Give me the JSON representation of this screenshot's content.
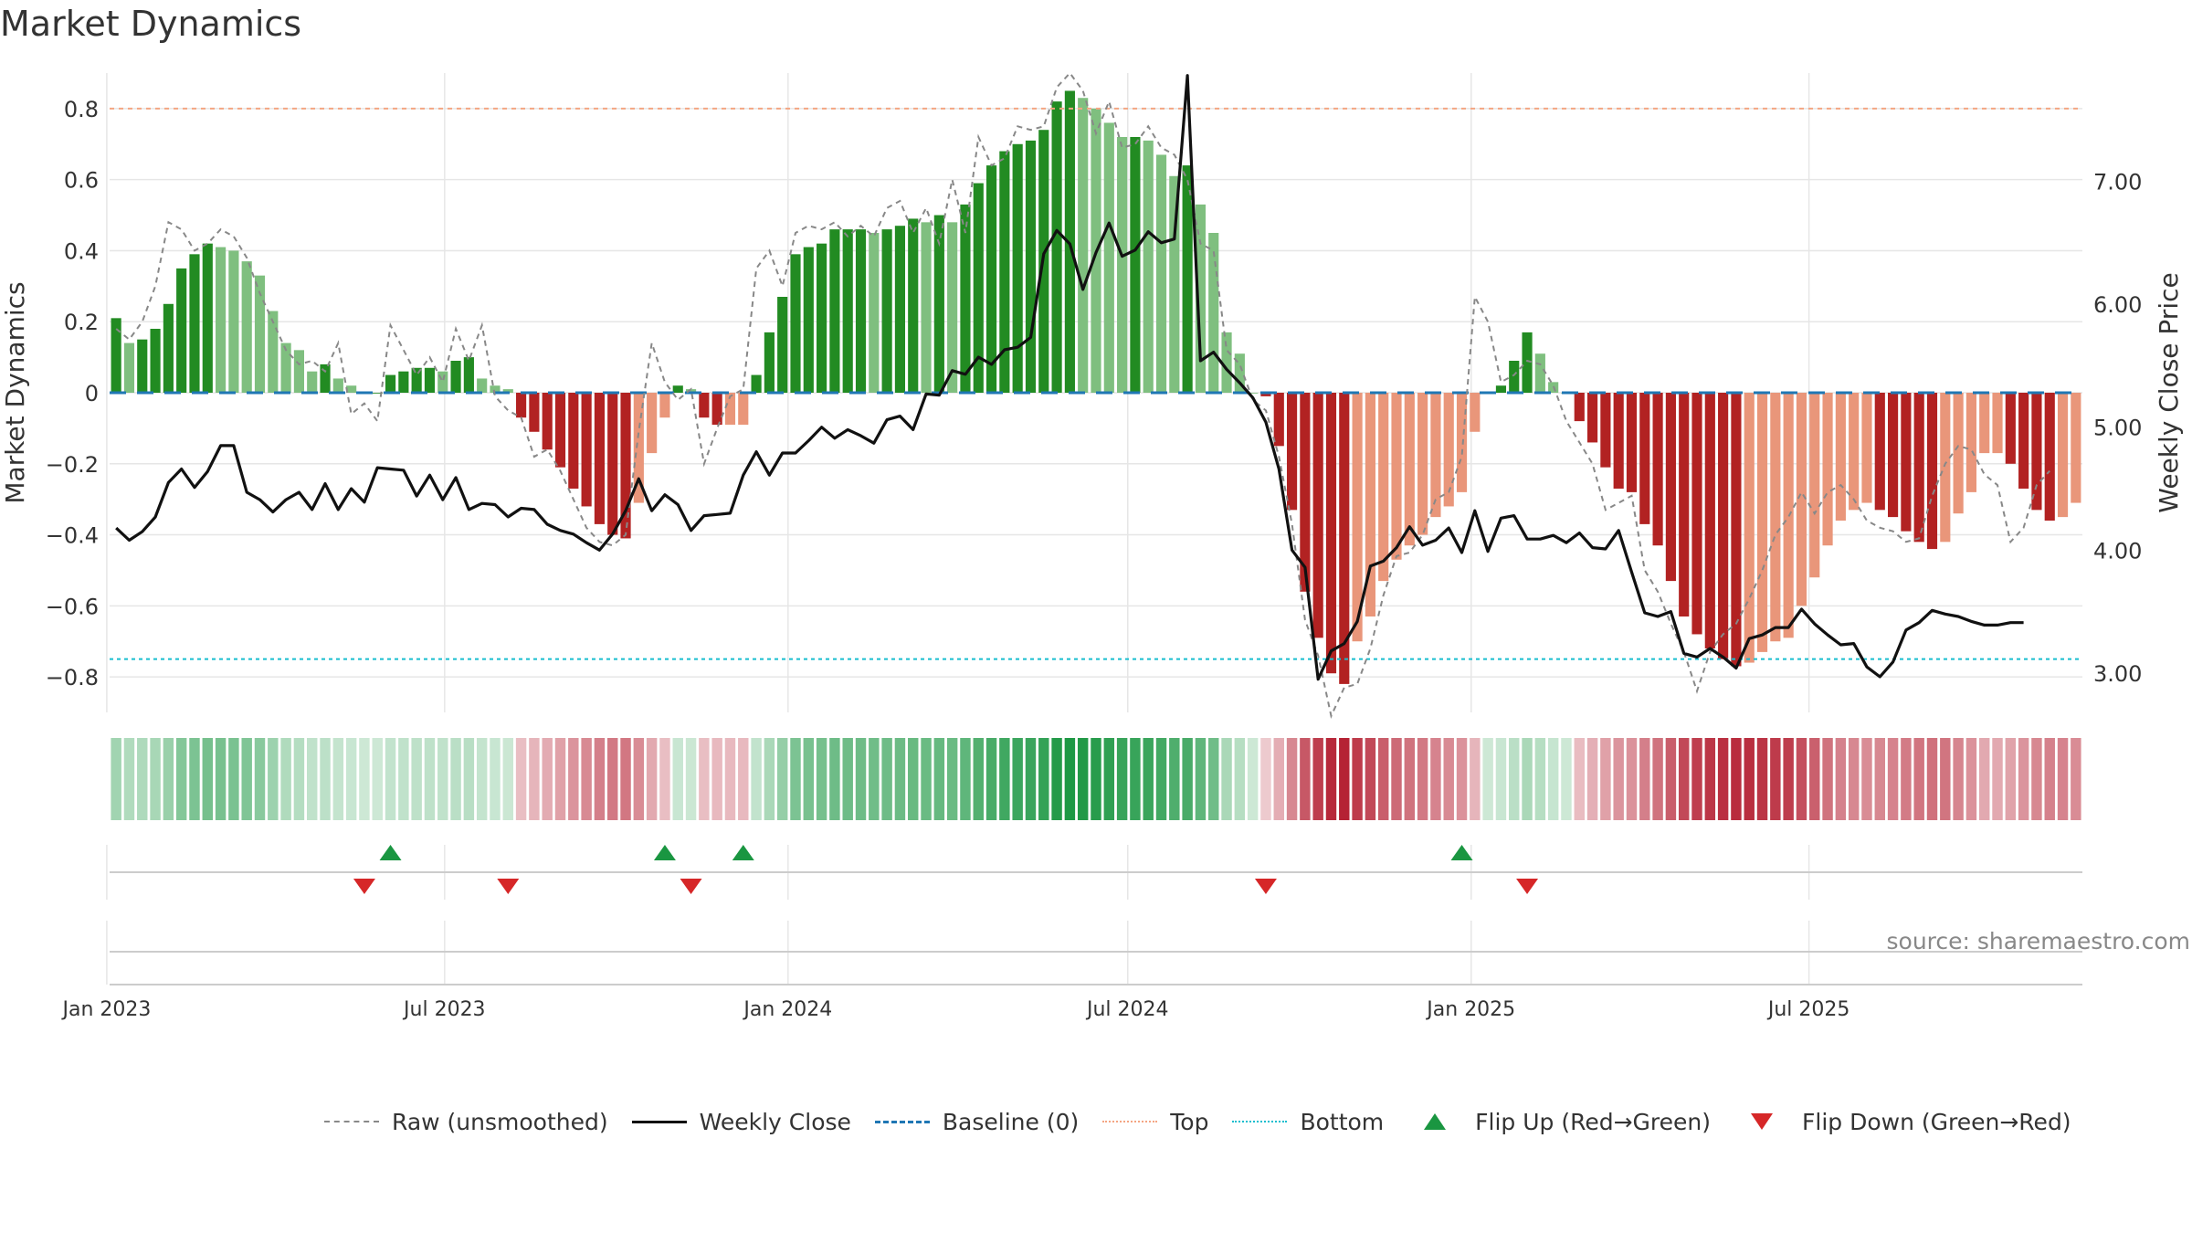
{
  "title": "Market Dynamics",
  "source": "source: sharemaestro.com",
  "colors": {
    "strong_green": "#228b22",
    "light_green": "#7fbf7f",
    "strong_red": "#b22222",
    "light_red": "#e9967a",
    "raw": "#888888",
    "close": "#111111",
    "baseline": "#1f77b4",
    "top": "#f4a582",
    "bottom": "#17becf",
    "flip_up": "#1a9641",
    "flip_down": "#d62728",
    "title": "#333333",
    "grid": "#e6e6e6"
  },
  "legend": [
    {
      "key": "raw",
      "label": "Raw (unsmoothed)",
      "style": "dashed",
      "color": "#888888"
    },
    {
      "key": "close",
      "label": "Weekly Close",
      "style": "solid",
      "color": "#111111"
    },
    {
      "key": "baseline",
      "label": "Baseline (0)",
      "style": "longdash",
      "color": "#1f77b4"
    },
    {
      "key": "top",
      "label": "Top",
      "style": "dotted",
      "color": "#f4a582"
    },
    {
      "key": "bottom",
      "label": "Bottom",
      "style": "dotted",
      "color": "#17becf"
    },
    {
      "key": "flip_up",
      "label": "Flip Up (Red→Green)",
      "style": "tri-up",
      "color": "#1a9641"
    },
    {
      "key": "flip_down",
      "label": "Flip Down (Green→Red)",
      "style": "tri-down",
      "color": "#d62728"
    }
  ],
  "chart_data": {
    "type": "bar",
    "title": "Market Dynamics",
    "ylabel": "Market Dynamics",
    "y2label": "Weekly Close Price",
    "x_start": "2023-01-06",
    "x_step_days": 7,
    "ylim": [
      -0.9,
      0.9
    ],
    "y_ticks": [
      "0.8",
      "0.6",
      "0.4",
      "0.2",
      "0",
      "−0.2",
      "−0.4",
      "−0.6",
      "−0.8"
    ],
    "y2lim": [
      2.68,
      7.88
    ],
    "y2_ticks": [
      "7.00",
      "6.00",
      "5.00",
      "4.00",
      "3.00"
    ],
    "x_ticks": [
      "Jan 2023",
      "Jul 2023",
      "Jan 2024",
      "Jul 2024",
      "Jan 2025",
      "Jul 2025"
    ],
    "top_level": 0.8,
    "bottom_level": -0.75,
    "baseline": 0,
    "grid": true,
    "legend_position": "bottom",
    "dynamics": [
      0.21,
      0.14,
      0.15,
      0.18,
      0.25,
      0.35,
      0.39,
      0.42,
      0.41,
      0.4,
      0.37,
      0.33,
      0.23,
      0.14,
      0.12,
      0.06,
      0.08,
      0.04,
      0.02,
      0,
      0,
      0.05,
      0.06,
      0.07,
      0.07,
      0.06,
      0.09,
      0.1,
      0.04,
      0.02,
      0.01,
      -0.07,
      -0.11,
      -0.16,
      -0.21,
      -0.27,
      -0.32,
      -0.37,
      -0.4,
      -0.41,
      -0.31,
      -0.17,
      -0.07,
      0.02,
      0.01,
      -0.07,
      -0.09,
      -0.09,
      -0.09,
      0.05,
      0.17,
      0.27,
      0.39,
      0.41,
      0.42,
      0.46,
      0.46,
      0.46,
      0.45,
      0.46,
      0.47,
      0.49,
      0.48,
      0.5,
      0.48,
      0.53,
      0.59,
      0.64,
      0.68,
      0.7,
      0.71,
      0.74,
      0.82,
      0.85,
      0.83,
      0.8,
      0.76,
      0.72,
      0.72,
      0.71,
      0.67,
      0.61,
      0.64,
      0.53,
      0.45,
      0.17,
      0.11,
      0,
      -0.01,
      -0.15,
      -0.33,
      -0.56,
      -0.69,
      -0.79,
      -0.82,
      -0.7,
      -0.63,
      -0.53,
      -0.47,
      -0.43,
      -0.4,
      -0.35,
      -0.32,
      -0.28,
      -0.11,
      0,
      0.02,
      0.09,
      0.17,
      0.11,
      0.03,
      0,
      -0.08,
      -0.14,
      -0.21,
      -0.27,
      -0.28,
      -0.37,
      -0.43,
      -0.53,
      -0.63,
      -0.68,
      -0.72,
      -0.75,
      -0.77,
      -0.76,
      -0.73,
      -0.7,
      -0.69,
      -0.6,
      -0.52,
      -0.43,
      -0.36,
      -0.33,
      -0.31,
      -0.33,
      -0.35,
      -0.39,
      -0.42,
      -0.44,
      -0.42,
      -0.34,
      -0.28,
      -0.17,
      -0.17,
      -0.2,
      -0.27,
      -0.33,
      -0.36,
      -0.35,
      -0.31
    ],
    "raw": [
      0.18,
      0.15,
      0.2,
      0.3,
      0.48,
      0.46,
      0.4,
      0.42,
      0.46,
      0.44,
      0.38,
      0.28,
      0.2,
      0.12,
      0.08,
      0.09,
      0.06,
      0.14,
      -0.06,
      -0.03,
      -0.08,
      0.19,
      0.12,
      0.05,
      0.1,
      0.03,
      0.18,
      0.09,
      0.19,
      -0.01,
      -0.05,
      -0.07,
      -0.18,
      -0.16,
      -0.22,
      -0.3,
      -0.38,
      -0.42,
      -0.43,
      -0.4,
      -0.11,
      0.14,
      0.03,
      -0.02,
      0.01,
      -0.2,
      -0.1,
      -0.01,
      0.01,
      0.35,
      0.4,
      0.3,
      0.45,
      0.47,
      0.46,
      0.48,
      0.44,
      0.47,
      0.44,
      0.52,
      0.54,
      0.45,
      0.52,
      0.42,
      0.6,
      0.45,
      0.72,
      0.64,
      0.66,
      0.75,
      0.74,
      0.75,
      0.86,
      0.9,
      0.85,
      0.73,
      0.82,
      0.69,
      0.7,
      0.75,
      0.69,
      0.67,
      0.6,
      0.42,
      0.4,
      0.12,
      0.08,
      -0.02,
      -0.05,
      -0.18,
      -0.37,
      -0.64,
      -0.74,
      -0.91,
      -0.83,
      -0.82,
      -0.72,
      -0.57,
      -0.46,
      -0.45,
      -0.4,
      -0.3,
      -0.28,
      -0.18,
      0.27,
      0.2,
      0.03,
      0.05,
      0.09,
      0.08,
      0.02,
      -0.08,
      -0.14,
      -0.2,
      -0.33,
      -0.31,
      -0.29,
      -0.5,
      -0.56,
      -0.65,
      -0.73,
      -0.84,
      -0.73,
      -0.68,
      -0.65,
      -0.58,
      -0.5,
      -0.4,
      -0.35,
      -0.28,
      -0.34,
      -0.28,
      -0.26,
      -0.3,
      -0.36,
      -0.38,
      -0.39,
      -0.42,
      -0.41,
      -0.29,
      -0.2,
      -0.15,
      -0.16,
      -0.23,
      -0.26,
      -0.42,
      -0.38,
      -0.26,
      -0.22
    ],
    "close": [
      4.18,
      4.08,
      4.15,
      4.27,
      4.55,
      4.66,
      4.51,
      4.64,
      4.85,
      4.85,
      4.47,
      4.41,
      4.31,
      4.41,
      4.47,
      4.33,
      4.54,
      4.33,
      4.5,
      4.39,
      4.67,
      4.66,
      4.65,
      4.44,
      4.61,
      4.41,
      4.59,
      4.33,
      4.38,
      4.37,
      4.27,
      4.34,
      4.33,
      4.21,
      4.16,
      4.13,
      4.06,
      4.0,
      4.13,
      4.32,
      4.58,
      4.32,
      4.45,
      4.37,
      4.16,
      4.28,
      4.29,
      4.3,
      4.61,
      4.8,
      4.61,
      4.79,
      4.79,
      4.89,
      5.0,
      4.91,
      4.98,
      4.93,
      4.87,
      5.06,
      5.09,
      4.98,
      5.27,
      5.26,
      5.46,
      5.43,
      5.57,
      5.51,
      5.63,
      5.65,
      5.73,
      6.41,
      6.6,
      6.49,
      6.12,
      6.42,
      6.66,
      6.39,
      6.44,
      6.59,
      6.5,
      6.53,
      7.86,
      5.54,
      5.61,
      5.47,
      5.36,
      5.24,
      5.04,
      4.66,
      4.0,
      3.86,
      2.95,
      3.18,
      3.24,
      3.42,
      3.87,
      3.91,
      4.02,
      4.19,
      4.04,
      4.08,
      4.18,
      3.98,
      4.32,
      3.99,
      4.26,
      4.28,
      4.09,
      4.09,
      4.12,
      4.06,
      4.14,
      4.02,
      4.01,
      4.16,
      3.82,
      3.49,
      3.46,
      3.5,
      3.16,
      3.13,
      3.2,
      3.13,
      3.04,
      3.28,
      3.31,
      3.37,
      3.37,
      3.52,
      3.4,
      3.31,
      3.23,
      3.24,
      3.05,
      2.97,
      3.09,
      3.35,
      3.41,
      3.51,
      3.48,
      3.46,
      3.42,
      3.39,
      3.39,
      3.41,
      3.41
    ],
    "flip_up_weeks": [
      21,
      42,
      48,
      103
    ],
    "flip_down_weeks": [
      19,
      30,
      44,
      88,
      108
    ]
  }
}
